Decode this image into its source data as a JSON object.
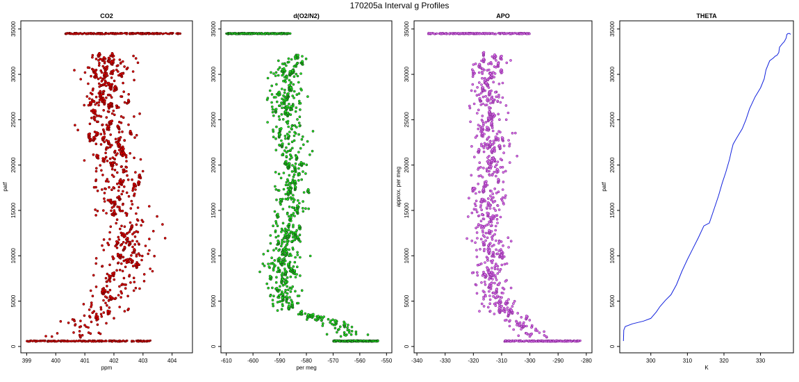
{
  "title": "170205a   Interval g Profiles",
  "chart_data": [
    {
      "type": "scatter",
      "title": "CO2",
      "xlabel": "ppm",
      "ylabel": "patf",
      "xlim": [
        398.8,
        404.7
      ],
      "ylim": [
        -700,
        35900
      ],
      "xticks": [
        399,
        400,
        401,
        402,
        403,
        404
      ],
      "yticks": [
        0,
        5000,
        10000,
        15000,
        20000,
        25000,
        30000,
        35000
      ],
      "color": "#e00000",
      "edge_color": "#6b0000",
      "top_band": {
        "y": 34500,
        "x_range": [
          400.3,
          404.3
        ]
      },
      "bottom_band": {
        "y": 600,
        "x_range": [
          399.0,
          403.3
        ]
      },
      "profile_center": [
        [
          1000,
          400.6
        ],
        [
          3000,
          401.3
        ],
        [
          6000,
          401.9
        ],
        [
          10000,
          402.4
        ],
        [
          13000,
          402.6
        ],
        [
          15000,
          402.2
        ],
        [
          20000,
          402.0
        ],
        [
          25000,
          401.8
        ],
        [
          30000,
          401.8
        ],
        [
          32000,
          401.9
        ]
      ],
      "scatter_spread": 1.0,
      "scatter_range": [
        1000,
        32200
      ]
    },
    {
      "type": "scatter",
      "title": "d(O2/N2)",
      "xlabel": "per meg",
      "ylabel": "",
      "xlim": [
        -612,
        -548
      ],
      "ylim": [
        -700,
        35900
      ],
      "xticks": [
        -610,
        -600,
        -590,
        -580,
        -570,
        -560,
        -550
      ],
      "yticks": [
        0,
        5000,
        10000,
        15000,
        20000,
        25000,
        30000,
        35000
      ],
      "color": "#22ee22",
      "edge_color": "#145214",
      "top_band": {
        "y": 34500,
        "x_range": [
          -610,
          -586
        ]
      },
      "bottom_band": {
        "y": 600,
        "x_range": [
          -570,
          -553
        ]
      },
      "profile_center": [
        [
          1000,
          -563
        ],
        [
          2500,
          -570
        ],
        [
          4000,
          -585
        ],
        [
          6000,
          -590
        ],
        [
          10000,
          -588
        ],
        [
          15000,
          -586
        ],
        [
          20000,
          -585
        ],
        [
          25000,
          -587
        ],
        [
          30000,
          -588
        ],
        [
          32000,
          -585
        ]
      ],
      "scatter_spread": 7,
      "scatter_range": [
        1000,
        32200
      ]
    },
    {
      "type": "scatter",
      "title": "APO",
      "xlabel": "",
      "ylabel": "approx. per meg",
      "xlim": [
        -341,
        -278
      ],
      "ylim": [
        -700,
        35900
      ],
      "xticks": [
        -340,
        -330,
        -320,
        -310,
        -300,
        -290,
        -280
      ],
      "yticks": [
        0,
        5000,
        10000,
        15000,
        20000,
        25000,
        30000,
        35000
      ],
      "color": "#dd77ee",
      "edge_color": "#8a2a9a",
      "top_band": {
        "y": 34500,
        "x_range": [
          -336,
          -300
        ]
      },
      "bottom_band": {
        "y": 600,
        "x_range": [
          -309,
          -282
        ]
      },
      "profile_center": [
        [
          1000,
          -297
        ],
        [
          2500,
          -303
        ],
        [
          4000,
          -311
        ],
        [
          6000,
          -314
        ],
        [
          10000,
          -313
        ],
        [
          15000,
          -315
        ],
        [
          20000,
          -313
        ],
        [
          25000,
          -315
        ],
        [
          30000,
          -315
        ],
        [
          32000,
          -314
        ]
      ],
      "scatter_spread": 7,
      "scatter_range": [
        1000,
        32200
      ]
    },
    {
      "type": "line",
      "title": "THETA",
      "xlabel": "K",
      "ylabel": "patf",
      "xlim": [
        291.5,
        339
      ],
      "ylim": [
        -700,
        35900
      ],
      "xticks": [
        300,
        310,
        320,
        330
      ],
      "yticks": [
        0,
        5000,
        10000,
        15000,
        20000,
        25000,
        30000,
        35000
      ],
      "color": "#1020dd",
      "x": [
        292.5,
        292.6,
        293.0,
        295.0,
        298.0,
        300.0,
        301.5,
        302.5,
        304.0,
        305.5,
        307.0,
        308.5,
        310.0,
        311.5,
        313.0,
        314.5,
        316.0,
        317.0,
        318.5,
        319.5,
        320.5,
        321.5,
        322.0,
        322.5,
        323.5,
        325.0,
        326.0,
        327.0,
        328.5,
        330.0,
        331.0,
        331.5,
        332.5,
        333.5,
        334.0,
        334.5,
        335.0,
        335.2,
        336.0,
        336.5,
        337.0,
        337.2,
        337.5,
        338.0,
        338.2
      ],
      "y": [
        600,
        1800,
        2200,
        2500,
        2800,
        3100,
        3800,
        4400,
        5100,
        5700,
        6800,
        8300,
        9600,
        10800,
        12000,
        13300,
        13600,
        14800,
        16600,
        18000,
        19200,
        20600,
        21500,
        22300,
        23000,
        24000,
        25000,
        26200,
        27500,
        28500,
        29500,
        30500,
        31500,
        31800,
        32000,
        32100,
        32400,
        33000,
        33400,
        33600,
        34000,
        34400,
        34500,
        34500,
        34400
      ]
    }
  ]
}
